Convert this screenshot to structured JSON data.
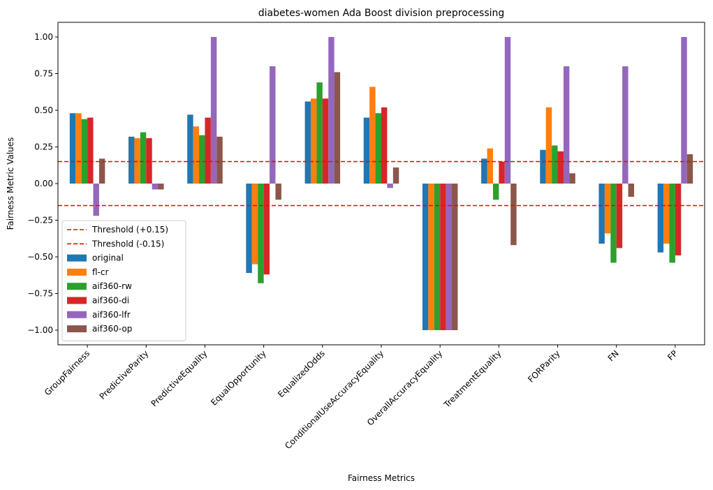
{
  "chart_data": {
    "type": "bar",
    "title": "diabetes-women Ada Boost division preprocessing",
    "xlabel": "Fairness Metrics",
    "ylabel": "Fairness Metric Values",
    "ylim": [
      -1.1,
      1.1
    ],
    "yticks": [
      -1.0,
      -0.75,
      -0.5,
      -0.25,
      0.0,
      0.25,
      0.5,
      0.75,
      1.0
    ],
    "ytick_labels": [
      "−1.00",
      "−0.75",
      "−0.50",
      "−0.25",
      "0.00",
      "0.25",
      "0.50",
      "0.75",
      "1.00"
    ],
    "grid": false,
    "legend_position": "lower-left",
    "categories": [
      "GroupFairness",
      "PredictiveParity",
      "PredictiveEquality",
      "EqualOpportunity",
      "EqualizedOdds",
      "ConditionalUseAccuracyEquality",
      "OverallAccuracyEquality",
      "TreatmentEquality",
      "FORParity",
      "FN",
      "FP"
    ],
    "series": [
      {
        "name": "original",
        "color": "#1f77b4",
        "values": [
          0.48,
          0.32,
          0.47,
          -0.61,
          0.56,
          0.45,
          -1.0,
          0.17,
          0.23,
          -0.41,
          -0.47
        ]
      },
      {
        "name": "fl-cr",
        "color": "#ff7f0e",
        "values": [
          0.48,
          0.31,
          0.39,
          -0.55,
          0.58,
          0.66,
          -1.0,
          0.24,
          0.52,
          -0.34,
          -0.41
        ]
      },
      {
        "name": "aif360-rw",
        "color": "#2ca02c",
        "values": [
          0.44,
          0.35,
          0.33,
          -0.68,
          0.69,
          0.48,
          -1.0,
          -0.11,
          0.26,
          -0.54,
          -0.54
        ]
      },
      {
        "name": "aif360-di",
        "color": "#d62728",
        "values": [
          0.45,
          0.31,
          0.45,
          -0.62,
          0.58,
          0.52,
          -1.0,
          0.15,
          0.22,
          -0.44,
          -0.49
        ]
      },
      {
        "name": "aif360-lfr",
        "color": "#9467bd",
        "values": [
          -0.22,
          -0.04,
          1.0,
          0.8,
          1.0,
          -0.03,
          -1.0,
          1.0,
          0.8,
          0.8,
          1.0
        ]
      },
      {
        "name": "aif360-op",
        "color": "#8c564b",
        "values": [
          0.17,
          -0.04,
          0.32,
          -0.11,
          0.76,
          0.11,
          -1.0,
          -0.42,
          0.07,
          -0.09,
          0.2
        ]
      }
    ],
    "thresholds": [
      {
        "name": "Threshold (+0.15)",
        "value": 0.15,
        "color": "#ff0000"
      },
      {
        "name": "Threshold (-0.15)",
        "value": -0.15,
        "color": "#ff0000"
      }
    ]
  }
}
